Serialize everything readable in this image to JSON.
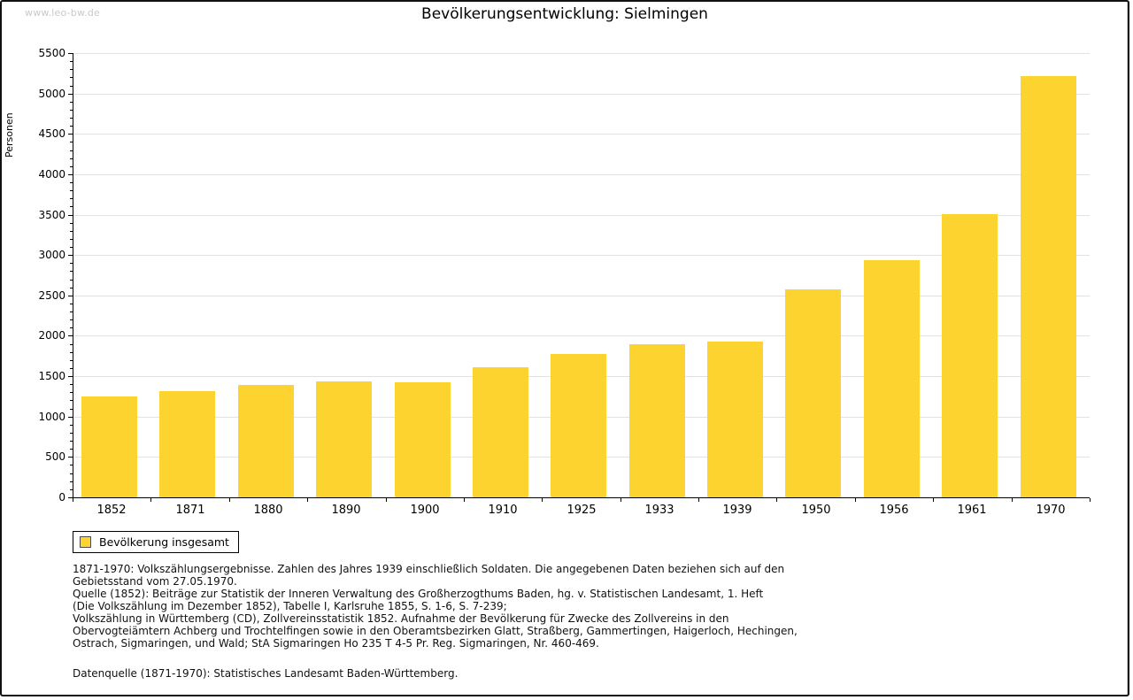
{
  "watermark": {
    "text": "www.leo-bw.de"
  },
  "chart_data": {
    "type": "bar",
    "title": "Bevölkerungsentwicklung: Sielmingen",
    "xlabel": "",
    "ylabel": "Personen",
    "categories": [
      "1852",
      "1871",
      "1880",
      "1890",
      "1900",
      "1910",
      "1925",
      "1933",
      "1939",
      "1950",
      "1956",
      "1961",
      "1970"
    ],
    "values": [
      1250,
      1320,
      1390,
      1435,
      1425,
      1610,
      1770,
      1890,
      1925,
      2575,
      2940,
      3510,
      5220
    ],
    "ylim": [
      0,
      5500
    ],
    "ytick_step": 500,
    "yminor_step": 100,
    "grid": true,
    "bar_color": "#FCD32F",
    "legend_label": "Bevölkerung insgesamt",
    "legend_position": "bottom-left"
  },
  "footnotes": {
    "lines": [
      "1871-1970: Volkszählungsergebnisse. Zahlen des Jahres 1939 einschließlich Soldaten. Die angegebenen Daten beziehen sich auf den",
      "Gebietsstand vom 27.05.1970.",
      "Quelle (1852): Beiträge zur Statistik der Inneren Verwaltung des Großherzogthums Baden, hg. v. Statistischen Landesamt, 1. Heft",
      "(Die Volkszählung im Dezember 1852), Tabelle I, Karlsruhe 1855, S. 1-6, S. 7-239;",
      "Volkszählung in Württemberg (CD), Zollvereinsstatistik 1852. Aufnahme der Bevölkerung für Zwecke des Zollvereins in den",
      "Obervogteiämtern Achberg und Trochtelfingen sowie in den Oberamtsbezirken Glatt, Straßberg, Gammertingen, Haigerloch, Hechingen,",
      "Ostrach, Sigmaringen, und Wald; StA Sigmaringen Ho 235 T 4-5 Pr. Reg. Sigmaringen, Nr. 460-469."
    ],
    "datasource": "Datenquelle (1871-1970): Statistisches Landesamt Baden-Württemberg."
  }
}
